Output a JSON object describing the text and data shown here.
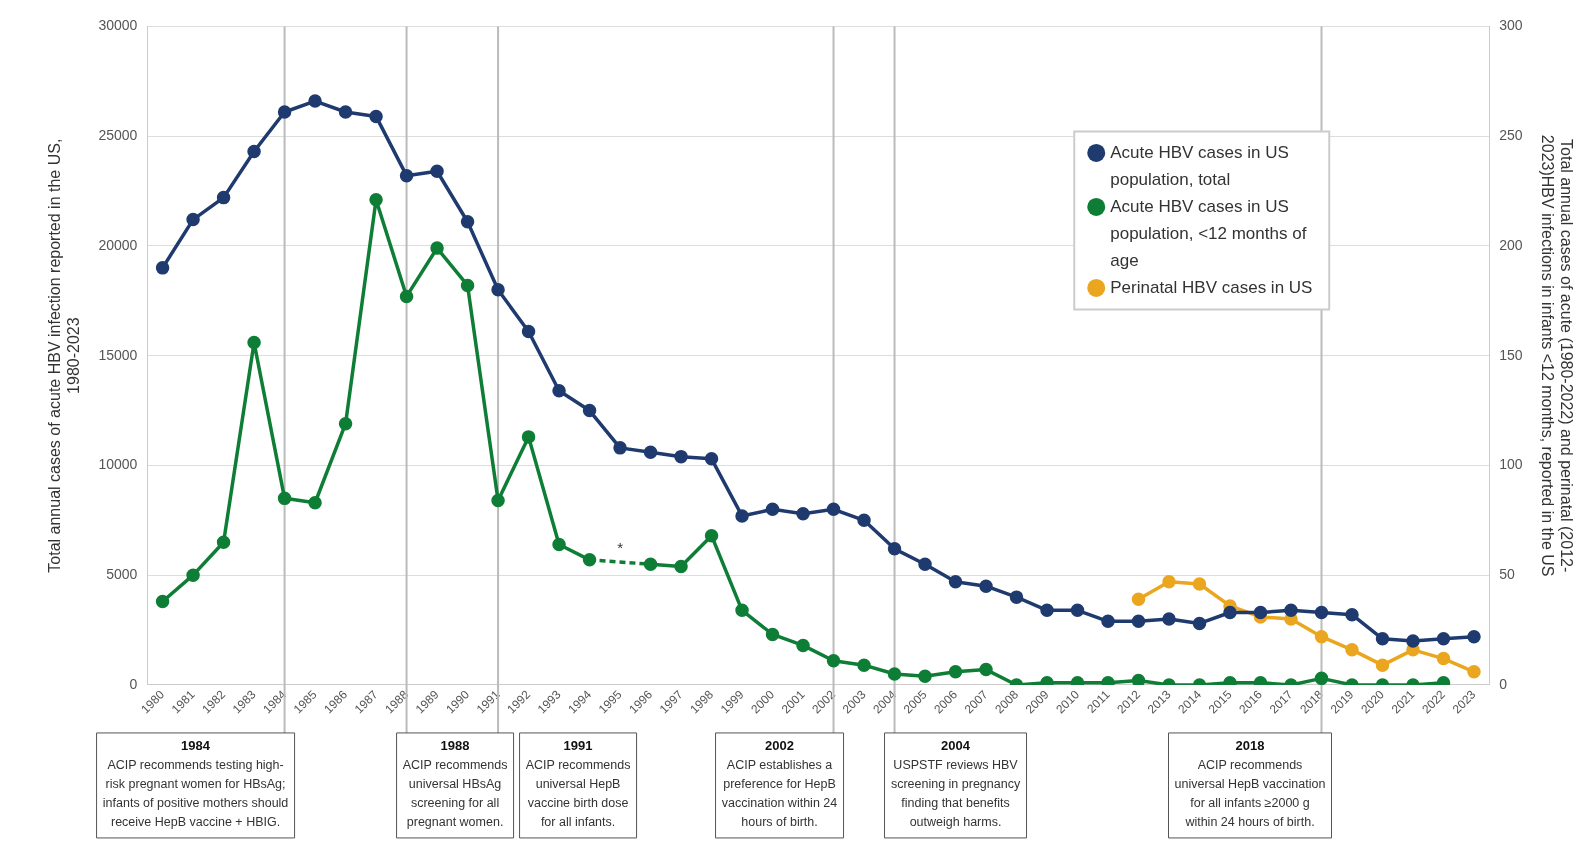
{
  "chart_data": {
    "type": "line",
    "ylabel": "Total annual cases of acute HBV infection reported in the US, 1980-2023",
    "y2label": "Total annual cases of acute (1980-2022) and perinatal (2012-2023)HBV infections in infants <12 months, reported in the US",
    "categories": [
      "1980",
      "1981",
      "1982",
      "1983",
      "1984",
      "1985",
      "1986",
      "1987",
      "1988",
      "1989",
      "1990",
      "1991",
      "1992",
      "1993",
      "1994",
      "1995",
      "1996",
      "1997",
      "1998",
      "1999",
      "2000",
      "2001",
      "2002",
      "2003",
      "2004",
      "2005",
      "2006",
      "2007",
      "2008",
      "2009",
      "2010",
      "2011",
      "2012",
      "2013",
      "2014",
      "2015",
      "2016",
      "2017",
      "2018",
      "2019",
      "2020",
      "2021",
      "2022",
      "2023"
    ],
    "series": [
      {
        "name": "Acute HBV cases in US population, total",
        "color": "#1f3a6e",
        "values": [
          19000,
          21200,
          22200,
          24300,
          26100,
          26600,
          26100,
          25900,
          23200,
          23400,
          21100,
          18000,
          16100,
          13400,
          12500,
          10800,
          10600,
          10400,
          10300,
          7700,
          8000,
          7800,
          8000,
          7500,
          6200,
          5500,
          4700,
          4500,
          4000,
          3400,
          3400,
          2900,
          2900,
          3000,
          2800,
          3300,
          3300,
          3400,
          3300,
          3200,
          2100,
          2000,
          2100,
          2200
        ]
      },
      {
        "name": "Acute HBV cases in US population, <12 months of age",
        "color": "#0e7d35",
        "axis": "y2",
        "values": [
          38,
          50,
          65,
          156,
          85,
          83,
          119,
          221,
          177,
          199,
          182,
          84,
          113,
          64,
          57,
          null,
          55,
          54,
          68,
          34,
          23,
          18,
          11,
          9,
          5,
          4,
          6,
          7,
          0,
          1,
          1,
          1,
          2,
          0,
          0,
          1,
          1,
          0,
          3,
          0,
          0,
          0,
          1,
          null
        ]
      },
      {
        "name": "Perinatal HBV cases in US",
        "color": "#eba61f",
        "axis": "y2",
        "values": [
          null,
          null,
          null,
          null,
          null,
          null,
          null,
          null,
          null,
          null,
          null,
          null,
          null,
          null,
          null,
          null,
          null,
          null,
          null,
          null,
          null,
          null,
          null,
          null,
          null,
          null,
          null,
          null,
          null,
          null,
          null,
          null,
          39,
          47,
          46,
          36,
          31,
          30,
          22,
          16,
          9,
          16,
          12,
          6
        ]
      }
    ],
    "ylim": [
      0,
      30000
    ],
    "yticks": [
      0,
      5000,
      10000,
      15000,
      20000,
      25000,
      30000
    ],
    "y2lim": [
      0,
      300
    ],
    "y2ticks": [
      0,
      50,
      100,
      150,
      200,
      250,
      300
    ],
    "grid": "y",
    "legend": "top right",
    "marker": "circle",
    "annotations": [
      "*"
    ],
    "ref_lines": [
      {
        "axis": "x",
        "value": "1984",
        "label": "ACIP recommends testing high-risk pregnant women for HBsAg; infants of positive mothers should receive HepB vaccine + HBIG."
      },
      {
        "axis": "x",
        "value": "1988",
        "label": "ACIP recommends universal HBsAg screening for all pregnant women."
      },
      {
        "axis": "x",
        "value": "1991",
        "label": "ACIP recommends universal HepB vaccine birth dose for all infants."
      },
      {
        "axis": "x",
        "value": "2002",
        "label": "ACIP establishes a preference for HepB vaccination within 24 hours of birth."
      },
      {
        "axis": "x",
        "value": "2004",
        "label": "USPSTF reviews HBV screening in pregnancy finding that benefits outweigh harms."
      },
      {
        "axis": "x",
        "value": "2018",
        "label": "ACIP recommends universal HepB vaccination for all infants ≥2000 g within 24 hours of birth."
      }
    ]
  }
}
